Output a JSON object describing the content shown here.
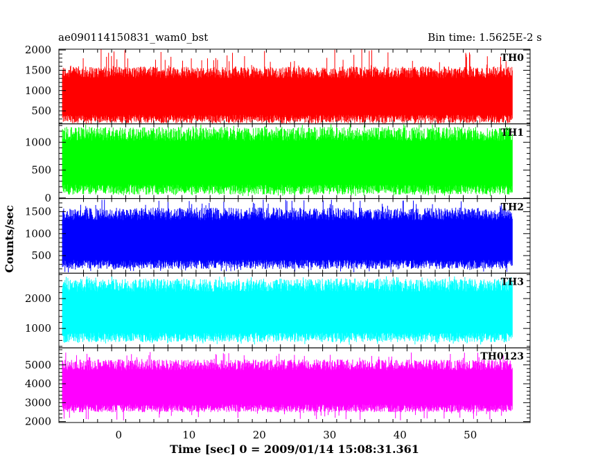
{
  "header": {
    "left_title": "ae090114150831_wam0_bst",
    "right_title": "Bin time: 1.5625E-2 s"
  },
  "chart_data": {
    "type": "line",
    "xlabel": "Time [sec] 0 = 2009/01/14 15:08:31.361",
    "ylabel": "Counts/sec",
    "xlim": [
      -8.5,
      58.5
    ],
    "x_data_range": [
      -8.0,
      56.0
    ],
    "bin_time_s": 0.015625,
    "x_ticks": [
      0,
      10,
      20,
      30,
      40,
      50
    ],
    "grid": false,
    "panels": [
      {
        "name": "TH0",
        "color": "#ff0000",
        "ylim": [
          180,
          2020
        ],
        "y_ticks": [
          500,
          1000,
          1500,
          2000
        ],
        "band_low": 300,
        "band_high": 1450,
        "spike_min": 150,
        "spike_max": 2020
      },
      {
        "name": "TH1",
        "color": "#00ff00",
        "ylim": [
          -10,
          1330
        ],
        "y_ticks": [
          0,
          500,
          1000
        ],
        "band_low": 150,
        "band_high": 1150,
        "spike_min": 30,
        "spike_max": 1330
      },
      {
        "name": "TH2",
        "color": "#0000ff",
        "ylim": [
          100,
          1800
        ],
        "y_ticks": [
          500,
          1000,
          1500
        ],
        "band_low": 300,
        "band_high": 1450,
        "spike_min": 110,
        "spike_max": 1780
      },
      {
        "name": "TH3",
        "color": "#00ffff",
        "ylim": [
          350,
          2850
        ],
        "y_ticks": [
          1000,
          2000
        ],
        "band_low": 700,
        "band_high": 2450,
        "spike_min": 450,
        "spike_max": 2750
      },
      {
        "name": "TH0123",
        "color": "#ff00ff",
        "ylim": [
          1950,
          5900
        ],
        "y_ticks": [
          2000,
          3000,
          4000,
          5000
        ],
        "band_low": 2700,
        "band_high": 5000,
        "spike_min": 2050,
        "spike_max": 5700
      }
    ]
  }
}
